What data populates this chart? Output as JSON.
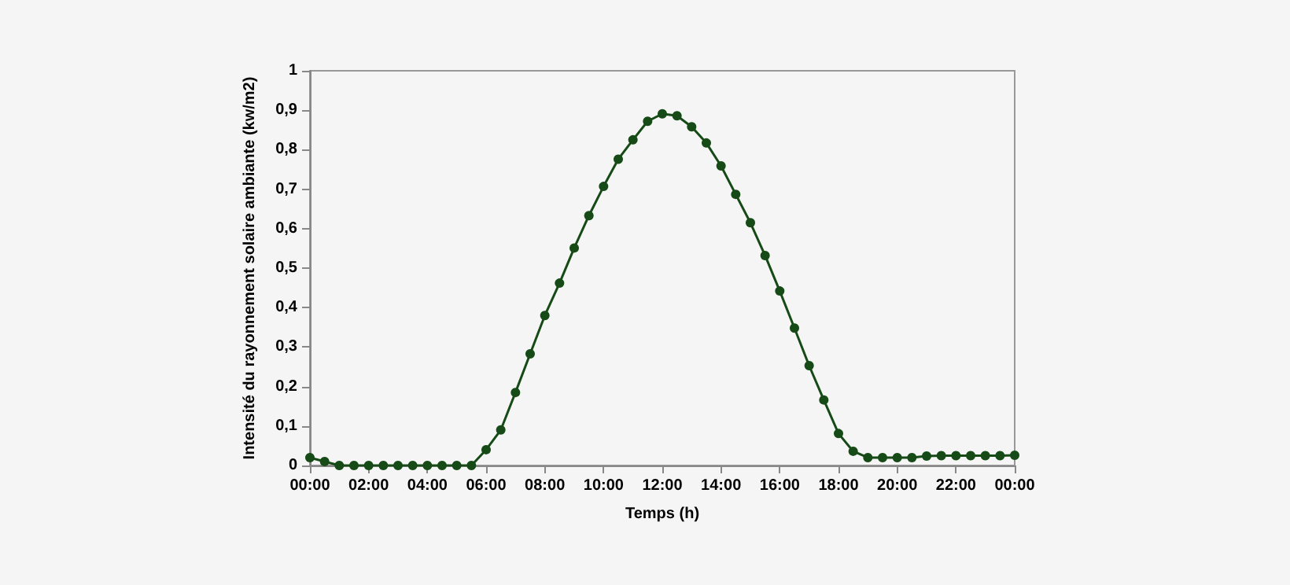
{
  "chart_data": {
    "type": "line",
    "xlabel": "Temps (h)",
    "ylabel": "Intensité du rayonnement solaire ambiante (kw/m2)",
    "x": [
      0,
      0.5,
      1,
      1.5,
      2,
      2.5,
      3,
      3.5,
      4,
      4.5,
      5,
      5.5,
      6,
      6.5,
      7,
      7.5,
      8,
      8.5,
      9,
      9.5,
      10,
      10.5,
      11,
      11.5,
      12,
      12.5,
      13,
      13.5,
      14,
      14.5,
      15,
      15.5,
      16,
      16.5,
      17,
      17.5,
      18,
      18.5,
      19,
      19.5,
      20,
      20.5,
      21,
      21.5,
      22,
      22.5,
      23,
      23.5,
      24
    ],
    "series": [
      {
        "color": "#164a16",
        "values": [
          0.02,
          0.01,
          0,
          0,
          0,
          0,
          0,
          0,
          0,
          0,
          0,
          0,
          0.04,
          0.09,
          0.185,
          0.283,
          0.38,
          0.462,
          0.551,
          0.633,
          0.707,
          0.776,
          0.825,
          0.872,
          0.891,
          0.886,
          0.858,
          0.817,
          0.759,
          0.687,
          0.615,
          0.532,
          0.442,
          0.348,
          0.253,
          0.166,
          0.081,
          0.036,
          0.02,
          0.02,
          0.02,
          0.02,
          0.024,
          0.025,
          0.025,
          0.025,
          0.025,
          0.025,
          0.026
        ]
      }
    ],
    "xlim": [
      0,
      24
    ],
    "xticks": [
      {
        "value": 0,
        "label": "00:00"
      },
      {
        "value": 2,
        "label": "02:00"
      },
      {
        "value": 4,
        "label": "04:00"
      },
      {
        "value": 6,
        "label": "06:00"
      },
      {
        "value": 8,
        "label": "08:00"
      },
      {
        "value": 10,
        "label": "10:00"
      },
      {
        "value": 12,
        "label": "12:00"
      },
      {
        "value": 14,
        "label": "14:00"
      },
      {
        "value": 16,
        "label": "16:00"
      },
      {
        "value": 18,
        "label": "18:00"
      },
      {
        "value": 20,
        "label": "20:00"
      },
      {
        "value": 22,
        "label": "22:00"
      },
      {
        "value": 24,
        "label": "00:00"
      }
    ],
    "ylim": [
      0,
      1
    ],
    "yticks": [
      0,
      {
        "value": 0.1,
        "label": "0,1"
      },
      {
        "value": 0.2,
        "label": "0,2"
      },
      {
        "value": 0.3,
        "label": "0,3"
      },
      {
        "value": 0.4,
        "label": "0,4"
      },
      {
        "value": 0.5,
        "label": "0,5"
      },
      {
        "value": 0.6,
        "label": "0,6"
      },
      {
        "value": 0.7,
        "label": "0,7"
      },
      {
        "value": 0.8,
        "label": "0,8"
      },
      {
        "value": 0.9,
        "label": "0,9"
      },
      1
    ],
    "grid": false,
    "marker": "circle",
    "line_style": "solid"
  }
}
